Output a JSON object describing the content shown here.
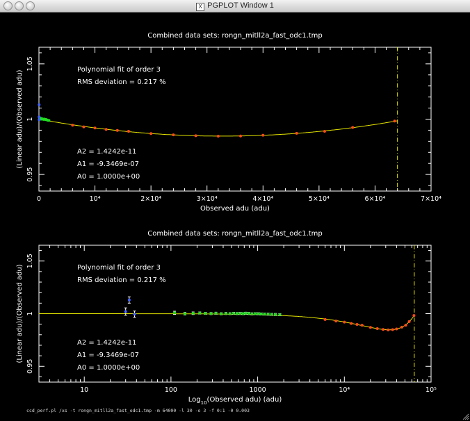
{
  "window": {
    "title": "PGPLOT Window 1",
    "command_line": "ccd_perf.pl /xs -t rongn_mitll2a_fast_odc1.tmp -m 64000 -l 30 -o 3 -f 0:1 -0 0.003"
  },
  "colors": {
    "fit_curve": "#e6e600",
    "limit_line": "#e6e600",
    "points_red": "#ff4a1a",
    "points_green": "#22dd22",
    "points_blue": "#4060ff",
    "frame": "#ffffff",
    "text": "#ffffff",
    "background": "#000000"
  },
  "chart_data": [
    {
      "type": "scatter",
      "title": "Combined data sets: rongn_mitll2a_fast_odc1.tmp",
      "xlabel": "Observed adu (adu)",
      "ylabel": "(Linear adu)/(Observed adu)",
      "xlim": [
        0,
        70000
      ],
      "ylim": [
        0.935,
        1.065
      ],
      "x_scale": "linear",
      "xtick_values": [
        0,
        10000,
        20000,
        30000,
        40000,
        50000,
        60000,
        70000
      ],
      "xtick_labels": [
        "0",
        "10⁴",
        "2×10⁴",
        "3×10⁴",
        "4×10⁴",
        "5×10⁴",
        "6×10⁴",
        "7×10⁴"
      ],
      "ytick_values": [
        0.95,
        1,
        1.05
      ],
      "ytick_labels": [
        "0.95",
        "1",
        "1.05"
      ],
      "annotations": {
        "fit_label": "Polynomial fit of order  3",
        "rms_label": "RMS deviation =      0.217 %",
        "a2": "A2 = 1.4242e-11",
        "a1": "A1 = -9.3469e-07",
        "a0": "A0 = 1.0000e+00"
      },
      "fit": {
        "order": 3,
        "coefficients": [
          1.0,
          -9.3469e-07,
          1.4242e-11
        ],
        "x_range": [
          0,
          64000
        ]
      },
      "limit_line_x": 64000,
      "series": [
        {
          "color_key": "points_red",
          "points": [
            [
              6000,
              0.9945
            ],
            [
              8000,
              0.993
            ],
            [
              10000,
              0.992
            ],
            [
              12000,
              0.9907
            ],
            [
              14000,
              0.9898
            ],
            [
              16000,
              0.989
            ],
            [
              20000,
              0.987
            ],
            [
              24000,
              0.9858
            ],
            [
              28000,
              0.985
            ],
            [
              32000,
              0.9846
            ],
            [
              36000,
              0.9848
            ],
            [
              40000,
              0.9855
            ],
            [
              46000,
              0.9872
            ],
            [
              51000,
              0.989
            ],
            [
              56000,
              0.9925
            ],
            [
              63500,
              0.9983
            ]
          ]
        },
        {
          "color_key": "points_green",
          "points": [
            [
              100,
              1.001
            ],
            [
              200,
              1.0005
            ],
            [
              300,
              1.0008
            ],
            [
              400,
              1.0
            ],
            [
              500,
              1.0004
            ],
            [
              600,
              1.0002
            ],
            [
              700,
              1.0
            ],
            [
              800,
              0.9998
            ],
            [
              900,
              1.0001
            ],
            [
              1000,
              0.9999
            ],
            [
              1100,
              0.9997
            ],
            [
              1200,
              0.9998
            ],
            [
              1300,
              0.9995
            ],
            [
              1400,
              0.9994
            ],
            [
              1600,
              0.999
            ],
            [
              1800,
              0.9988
            ]
          ]
        },
        {
          "color_key": "points_blue",
          "points": [
            [
              30,
              1.002
            ],
            [
              33,
              1.013
            ],
            [
              38,
              0.9995
            ]
          ]
        }
      ]
    },
    {
      "type": "scatter",
      "title": "Combined data sets: rongn_mitll2a_fast_odc1.tmp",
      "xlabel_prefix": "Log",
      "xlabel_sub": "10",
      "xlabel_suffix": "(Observed adu) (adu)",
      "ylabel": "(Linear adu)/(Observed adu)",
      "xlim": [
        3,
        100000
      ],
      "ylim": [
        0.935,
        1.065
      ],
      "x_scale": "log",
      "xtick_values": [
        10,
        100,
        1000,
        10000,
        100000
      ],
      "xtick_labels": [
        "10",
        "100",
        "1000",
        "10⁴",
        "10⁵"
      ],
      "ytick_values": [
        0.95,
        1,
        1.05
      ],
      "ytick_labels": [
        "0.95",
        "1",
        "1.05"
      ],
      "annotations": {
        "fit_label": "Polynomial fit of order  3",
        "rms_label": "RMS deviation =      0.217 %",
        "a2": "A2 = 1.4242e-11",
        "a1": "A1 = -9.3469e-07",
        "a0": "A0 = 1.0000e+00"
      },
      "fit": {
        "order": 3,
        "coefficients": [
          1.0,
          -9.3469e-07,
          1.4242e-11
        ],
        "x_range": [
          3,
          64000
        ]
      },
      "limit_line_x": 64000,
      "series": [
        {
          "color_key": "points_blue",
          "errorbars": true,
          "points": [
            {
              "x": 30,
              "y": 1.002,
              "err": 0.0035
            },
            {
              "x": 33,
              "y": 1.013,
              "err": 0.003
            },
            {
              "x": 38,
              "y": 0.9995,
              "err": 0.003
            }
          ]
        },
        {
          "color_key": "points_green",
          "errorbars": true,
          "points": [
            {
              "x": 110,
              "y": 1.0008,
              "err": 0.0015
            },
            {
              "x": 145,
              "y": 1.0,
              "err": 0.0012
            },
            {
              "x": 180,
              "y": 1.0004,
              "err": 0.0012
            },
            {
              "x": 215,
              "y": 1.0006,
              "err": 0.001
            },
            {
              "x": 250,
              "y": 1.0003,
              "err": 0.001
            },
            {
              "x": 290,
              "y": 1.0001,
              "err": 0.001
            },
            {
              "x": 330,
              "y": 1.0004,
              "err": 0.001
            },
            {
              "x": 380,
              "y": 0.9999,
              "err": 0.001
            },
            {
              "x": 430,
              "y": 1.0002,
              "err": 0.001
            },
            {
              "x": 480,
              "y": 1.0,
              "err": 0.001
            },
            {
              "x": 530,
              "y": 1.0003,
              "err": 0.001
            },
            {
              "x": 580,
              "y": 1.0001,
              "err": 0.001
            },
            {
              "x": 630,
              "y": 1.0002,
              "err": 0.001
            },
            {
              "x": 680,
              "y": 1.0,
              "err": 0.001
            },
            {
              "x": 730,
              "y": 1.0004,
              "err": 0.001
            },
            {
              "x": 790,
              "y": 1.0002,
              "err": 0.001
            },
            {
              "x": 860,
              "y": 0.9998,
              "err": 0.001
            },
            {
              "x": 940,
              "y": 1.0,
              "err": 0.001
            },
            {
              "x": 1020,
              "y": 0.9999,
              "err": 0.001
            },
            {
              "x": 1100,
              "y": 0.9997,
              "err": 0.001
            },
            {
              "x": 1200,
              "y": 0.9996,
              "err": 0.001
            },
            {
              "x": 1320,
              "y": 0.9995,
              "err": 0.001
            },
            {
              "x": 1450,
              "y": 0.9993,
              "err": 0.001
            },
            {
              "x": 1600,
              "y": 0.9992,
              "err": 0.001
            },
            {
              "x": 1800,
              "y": 0.999,
              "err": 0.001
            }
          ]
        },
        {
          "color_key": "points_red",
          "errorbars": false,
          "points": [
            {
              "x": 6000,
              "y": 0.9945
            },
            {
              "x": 8000,
              "y": 0.993
            },
            {
              "x": 10000,
              "y": 0.992
            },
            {
              "x": 12000,
              "y": 0.9907
            },
            {
              "x": 14000,
              "y": 0.9898
            },
            {
              "x": 16000,
              "y": 0.989
            },
            {
              "x": 20000,
              "y": 0.987
            },
            {
              "x": 24000,
              "y": 0.9858
            },
            {
              "x": 28000,
              "y": 0.985
            },
            {
              "x": 32000,
              "y": 0.9846
            },
            {
              "x": 36000,
              "y": 0.9848
            },
            {
              "x": 40000,
              "y": 0.9855
            },
            {
              "x": 46000,
              "y": 0.9872
            },
            {
              "x": 51000,
              "y": 0.989
            },
            {
              "x": 56000,
              "y": 0.9925
            },
            {
              "x": 63500,
              "y": 0.9983
            }
          ]
        }
      ]
    }
  ]
}
